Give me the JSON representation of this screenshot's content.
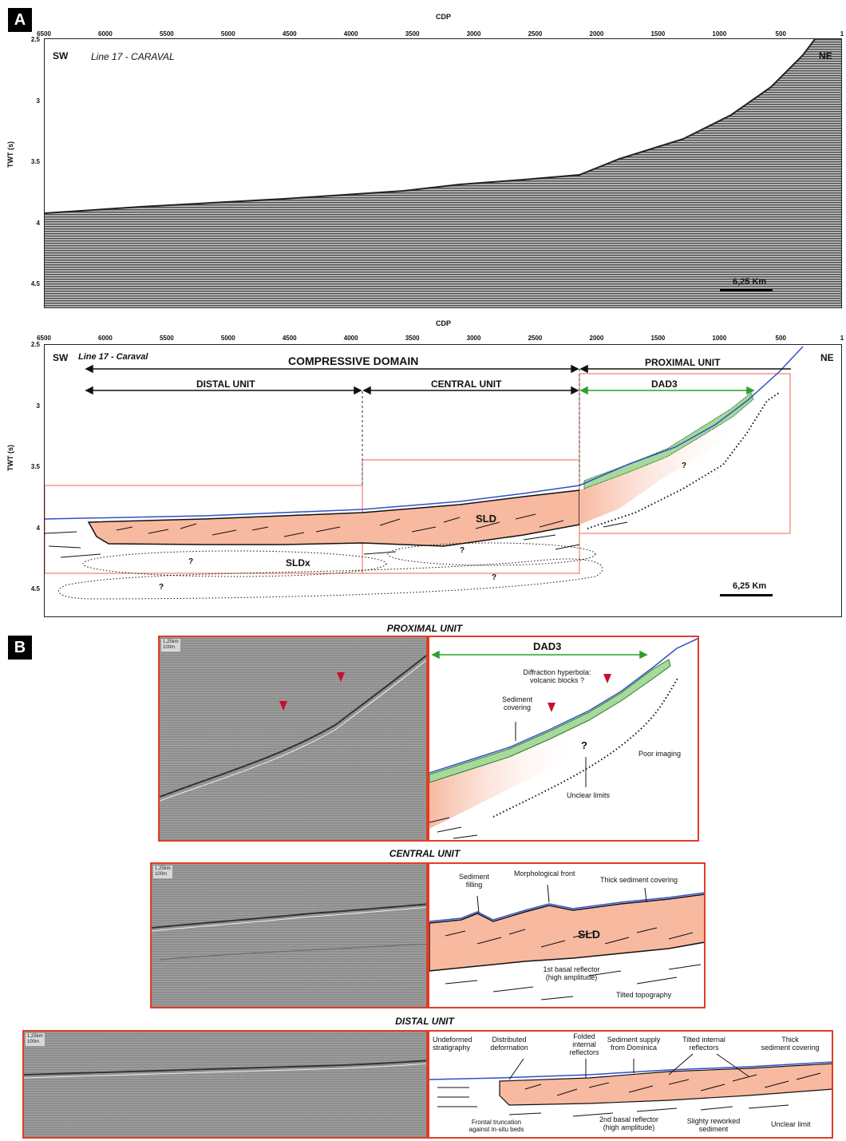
{
  "panels": {
    "a": "A",
    "b": "B"
  },
  "axes": {
    "cdp_title": "CDP",
    "twt_title": "TWT (s)",
    "cdp_ticks": [
      "6500",
      "6000",
      "5500",
      "5000",
      "4500",
      "4000",
      "3500",
      "3000",
      "2500",
      "2000",
      "1500",
      "1000",
      "500",
      "1"
    ],
    "twt_ticks_top": [
      "2.5",
      "3",
      "3.5",
      "4",
      "4.5"
    ],
    "twt_ticks_bottom": [
      "2.5",
      "3",
      "3.5",
      "4",
      "4.5"
    ]
  },
  "top_section": {
    "sw": "SW",
    "ne": "NE",
    "line": "Line 17 - CARAVAL",
    "scale": "6,25 Km"
  },
  "interp_section": {
    "sw": "SW",
    "ne": "NE",
    "line": "Line 17 - Caraval",
    "compressive": "COMPRESSIVE DOMAIN",
    "proximal": "PROXIMAL UNIT",
    "distal": "DISTAL UNIT",
    "central": "CENTRAL UNIT",
    "dad3": "DAD3",
    "sld": "SLD",
    "sldx": "SLDx",
    "q": "?",
    "scale": "6,25 Km"
  },
  "proximal_detail": {
    "title": "PROXIMAL UNIT",
    "scale_km": "1,25km",
    "scale_m": "100m",
    "dad3": "DAD3",
    "diffraction": "Diffraction hyperbola:",
    "volcanic": "volcanic blocks ?",
    "sediment": "Sediment",
    "covering": "covering",
    "q": "?",
    "poor": "Poor imaging",
    "unclear": "Unclear limits"
  },
  "central_detail": {
    "title": "CENTRAL UNIT",
    "scale_km": "1,25km",
    "scale_m": "100m",
    "sed_filling_1": "Sediment",
    "sed_filling_2": "filling",
    "morph": "Morphological front",
    "thick": "Thick sediment covering",
    "sld": "SLD",
    "basal_1": "1st basal reflector",
    "basal_2": "(high amplitude)",
    "tilted": "Tilted topography"
  },
  "distal_detail": {
    "title": "DISTAL UNIT",
    "scale_km": "1,25km",
    "scale_m": "100m",
    "undeformed_1": "Undeformed",
    "undeformed_2": "stratigraphy",
    "distributed_1": "Distributed",
    "distributed_2": "deformation",
    "folded_1": "Folded",
    "folded_2": "internal",
    "folded_3": "reflectors",
    "supply_1": "Sediment supply",
    "supply_2": "from Dominica",
    "tilted_1": "Tilted internal",
    "tilted_2": "reflectors",
    "thick_1": "Thick",
    "thick_2": "sediment covering",
    "frontal_1": "Frontal truncation",
    "frontal_2": "against in-situ beds",
    "basal2_1": "2nd basal reflector",
    "basal2_2": "(high amplitude)",
    "reworked_1": "Slighty reworked",
    "reworked_2": "sediment",
    "unclear": "Unclear limit"
  },
  "colors": {
    "sld_fill": "#f7b9a0",
    "dad_fill": "#a6d99a",
    "red_box": "#e03c28",
    "seafloor": "#3050c8",
    "dad_line": "#2ca02c"
  }
}
